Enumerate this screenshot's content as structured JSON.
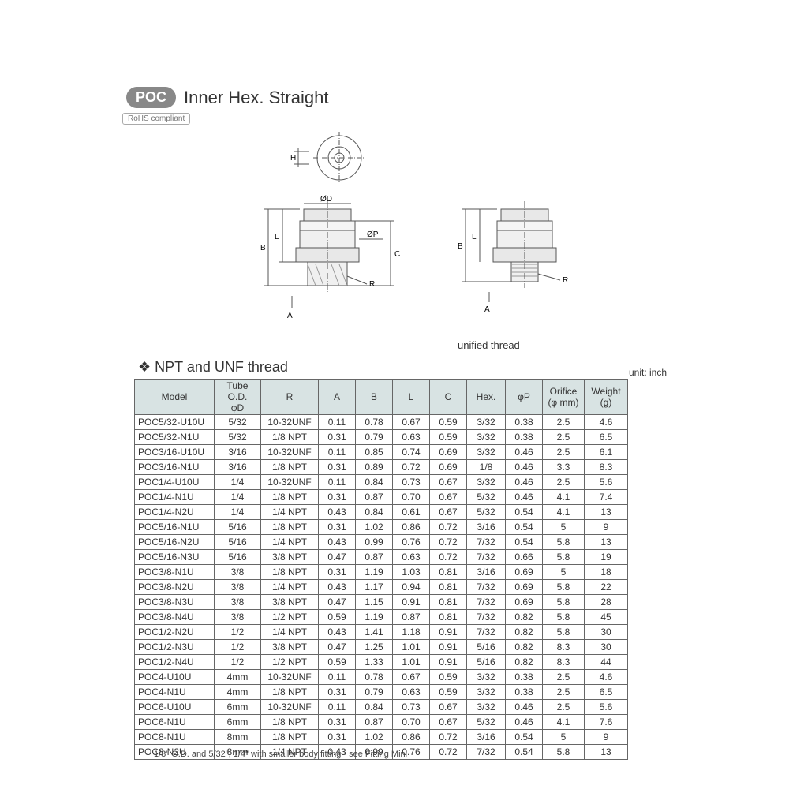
{
  "badge": "POC",
  "title": "Inner Hex. Straight",
  "rohs": "RoHS compliant",
  "unified_label": "unified thread",
  "section_title": "❖  NPT and UNF thread",
  "unit_label": "unit: inch",
  "footnote": "1/8\" O.D. and 5/32\", 1/4\" with smaller body fitting -  see Fitting Mini",
  "diagram_labels": {
    "H": "H",
    "D": "ØD",
    "P": "ØP",
    "A": "A",
    "B": "B",
    "L": "L",
    "C": "C",
    "R": "R"
  },
  "columns": [
    "Model",
    "Tube O.D.\nφD",
    "R",
    "A",
    "B",
    "L",
    "C",
    "Hex.",
    "φP",
    "Orifice\n(φ mm)",
    "Weight\n(g)"
  ],
  "rows": [
    [
      "POC5/32-U10U",
      "5/32",
      "10-32UNF",
      "0.11",
      "0.78",
      "0.67",
      "0.59",
      "3/32",
      "0.38",
      "2.5",
      "4.6"
    ],
    [
      "POC5/32-N1U",
      "5/32",
      "1/8 NPT",
      "0.31",
      "0.79",
      "0.63",
      "0.59",
      "3/32",
      "0.38",
      "2.5",
      "6.5"
    ],
    [
      "POC3/16-U10U",
      "3/16",
      "10-32UNF",
      "0.11",
      "0.85",
      "0.74",
      "0.69",
      "3/32",
      "0.46",
      "2.5",
      "6.1"
    ],
    [
      "POC3/16-N1U",
      "3/16",
      "1/8 NPT",
      "0.31",
      "0.89",
      "0.72",
      "0.69",
      "1/8",
      "0.46",
      "3.3",
      "8.3"
    ],
    [
      "POC1/4-U10U",
      "1/4",
      "10-32UNF",
      "0.11",
      "0.84",
      "0.73",
      "0.67",
      "3/32",
      "0.46",
      "2.5",
      "5.6"
    ],
    [
      "POC1/4-N1U",
      "1/4",
      "1/8 NPT",
      "0.31",
      "0.87",
      "0.70",
      "0.67",
      "5/32",
      "0.46",
      "4.1",
      "7.4"
    ],
    [
      "POC1/4-N2U",
      "1/4",
      "1/4 NPT",
      "0.43",
      "0.84",
      "0.61",
      "0.67",
      "5/32",
      "0.54",
      "4.1",
      "13"
    ],
    [
      "POC5/16-N1U",
      "5/16",
      "1/8 NPT",
      "0.31",
      "1.02",
      "0.86",
      "0.72",
      "3/16",
      "0.54",
      "5",
      "9"
    ],
    [
      "POC5/16-N2U",
      "5/16",
      "1/4 NPT",
      "0.43",
      "0.99",
      "0.76",
      "0.72",
      "7/32",
      "0.54",
      "5.8",
      "13"
    ],
    [
      "POC5/16-N3U",
      "5/16",
      "3/8 NPT",
      "0.47",
      "0.87",
      "0.63",
      "0.72",
      "7/32",
      "0.66",
      "5.8",
      "19"
    ],
    [
      "POC3/8-N1U",
      "3/8",
      "1/8 NPT",
      "0.31",
      "1.19",
      "1.03",
      "0.81",
      "3/16",
      "0.69",
      "5",
      "18"
    ],
    [
      "POC3/8-N2U",
      "3/8",
      "1/4 NPT",
      "0.43",
      "1.17",
      "0.94",
      "0.81",
      "7/32",
      "0.69",
      "5.8",
      "22"
    ],
    [
      "POC3/8-N3U",
      "3/8",
      "3/8 NPT",
      "0.47",
      "1.15",
      "0.91",
      "0.81",
      "7/32",
      "0.69",
      "5.8",
      "28"
    ],
    [
      "POC3/8-N4U",
      "3/8",
      "1/2 NPT",
      "0.59",
      "1.19",
      "0.87",
      "0.81",
      "7/32",
      "0.82",
      "5.8",
      "45"
    ],
    [
      "POC1/2-N2U",
      "1/2",
      "1/4 NPT",
      "0.43",
      "1.41",
      "1.18",
      "0.91",
      "7/32",
      "0.82",
      "5.8",
      "30"
    ],
    [
      "POC1/2-N3U",
      "1/2",
      "3/8 NPT",
      "0.47",
      "1.25",
      "1.01",
      "0.91",
      "5/16",
      "0.82",
      "8.3",
      "30"
    ],
    [
      "POC1/2-N4U",
      "1/2",
      "1/2 NPT",
      "0.59",
      "1.33",
      "1.01",
      "0.91",
      "5/16",
      "0.82",
      "8.3",
      "44"
    ],
    [
      "POC4-U10U",
      "4mm",
      "10-32UNF",
      "0.11",
      "0.78",
      "0.67",
      "0.59",
      "3/32",
      "0.38",
      "2.5",
      "4.6"
    ],
    [
      "POC4-N1U",
      "4mm",
      "1/8 NPT",
      "0.31",
      "0.79",
      "0.63",
      "0.59",
      "3/32",
      "0.38",
      "2.5",
      "6.5"
    ],
    [
      "POC6-U10U",
      "6mm",
      "10-32UNF",
      "0.11",
      "0.84",
      "0.73",
      "0.67",
      "3/32",
      "0.46",
      "2.5",
      "5.6"
    ],
    [
      "POC6-N1U",
      "6mm",
      "1/8 NPT",
      "0.31",
      "0.87",
      "0.70",
      "0.67",
      "5/32",
      "0.46",
      "4.1",
      "7.6"
    ],
    [
      "POC8-N1U",
      "8mm",
      "1/8 NPT",
      "0.31",
      "1.02",
      "0.86",
      "0.72",
      "3/16",
      "0.54",
      "5",
      "9"
    ],
    [
      "POC8-N2U",
      "8mm",
      "1/4 NPT",
      "0.43",
      "0.99",
      "0.76",
      "0.72",
      "7/32",
      "0.54",
      "5.8",
      "13"
    ]
  ]
}
